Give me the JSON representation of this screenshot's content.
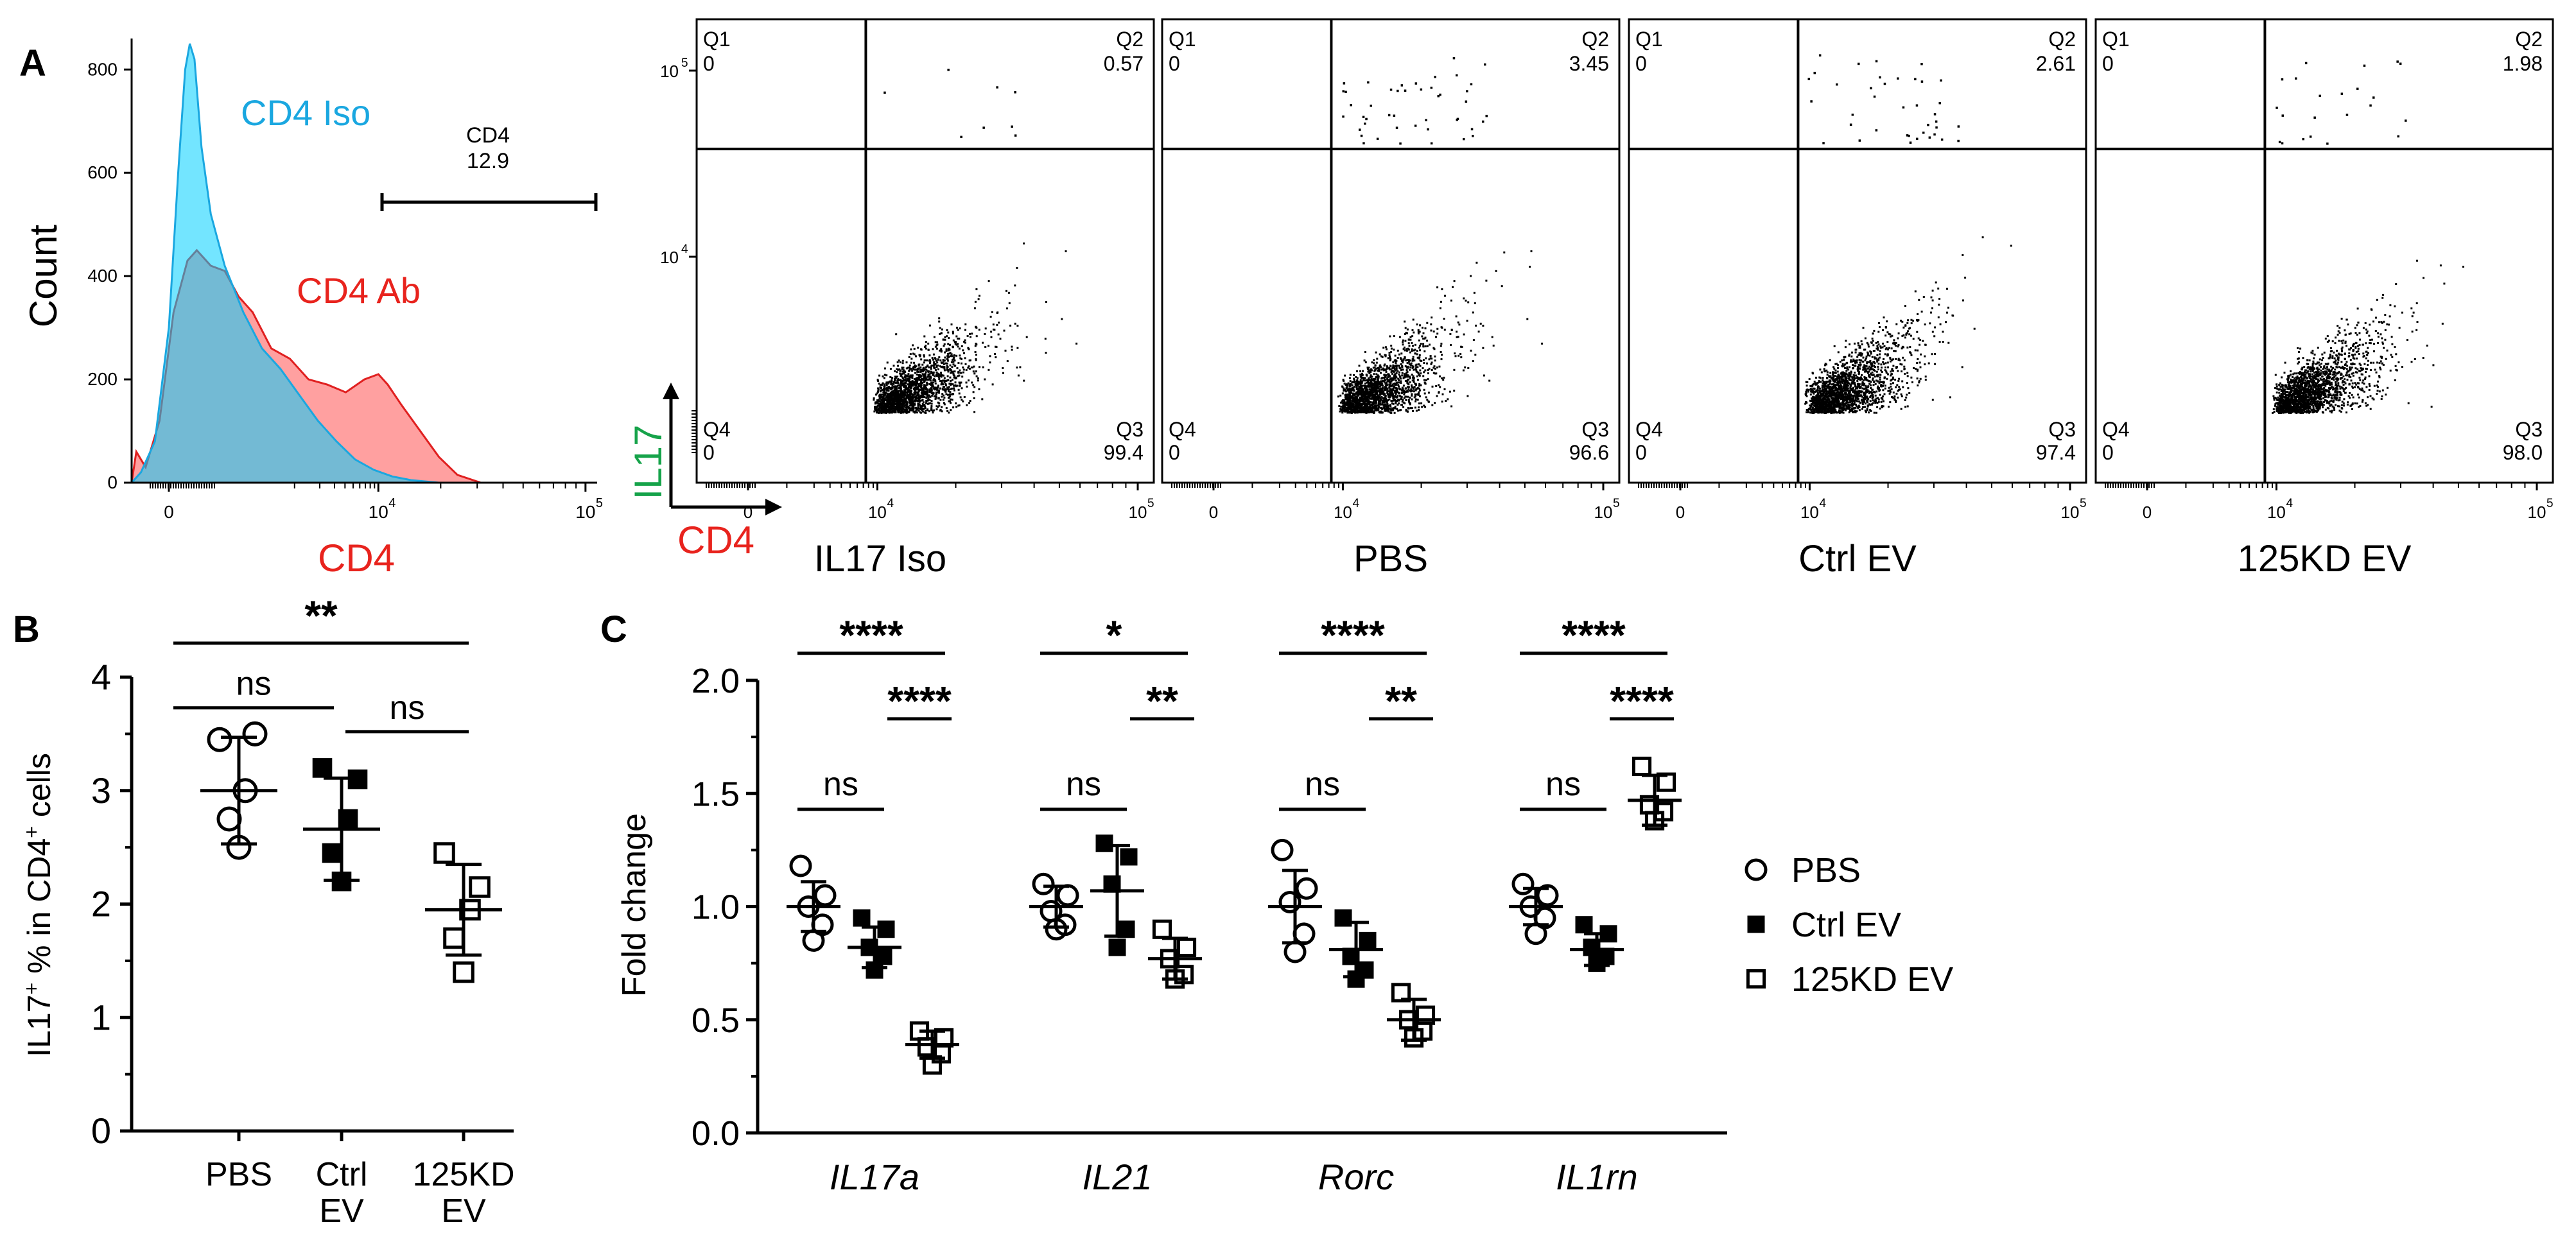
{
  "panel_labels": {
    "a": "A",
    "b": "B",
    "c": "C"
  },
  "colors": {
    "iso": "#00cfff",
    "iso_line": "#1aa7e0",
    "ab": "#ff8080",
    "ab_line": "#e02020",
    "overlap": "#6a9fb8",
    "red_text": "#e8231d",
    "green_text": "#16a34a",
    "cyan_text": "#1aa7e0",
    "black": "#000000"
  },
  "chart_data": [
    {
      "type": "area",
      "id": "histogram",
      "title": "",
      "xlabel": "CD4",
      "ylabel": "Count",
      "ylim": [
        0,
        860
      ],
      "y_ticks": [
        "0",
        "200",
        "400",
        "600",
        "800"
      ],
      "x_ticks": [
        "0",
        "10^4",
        "10^5"
      ],
      "series": [
        {
          "name": "CD4 Iso",
          "peak": 850
        },
        {
          "name": "CD4 Ab",
          "peak": 450
        }
      ],
      "gate": {
        "name": "CD4",
        "value": "12.9"
      },
      "tick_labels_display": {
        "x0": "0",
        "x4": "10",
        "x5": "10",
        "e4": "4",
        "e5": "5"
      }
    },
    {
      "type": "scatter",
      "id": "flow-plots",
      "xlabel": "CD4",
      "ylabel": "IL17",
      "axis_ticks": {
        "x0": "0",
        "x4": "10",
        "x5": "10",
        "e4": "4",
        "e5": "5",
        "y4": "10",
        "y5": "10"
      },
      "quadrant_names": [
        "Q1",
        "Q2",
        "Q3",
        "Q4"
      ],
      "plots": [
        {
          "label": "IL17 Iso",
          "Q1": "0",
          "Q2": "0.57",
          "Q3": "99.4",
          "Q4": "0",
          "q2_points": 8
        },
        {
          "label": "PBS",
          "Q1": "0",
          "Q2": "3.45",
          "Q3": "96.6",
          "Q4": "0",
          "q2_points": 45
        },
        {
          "label": "Ctrl EV",
          "Q1": "0",
          "Q2": "2.61",
          "Q3": "97.4",
          "Q4": "0",
          "q2_points": 38
        },
        {
          "label": "125KD EV",
          "Q1": "0",
          "Q2": "1.98",
          "Q3": "98.0",
          "Q4": "0",
          "q2_points": 22
        }
      ]
    },
    {
      "type": "scatter",
      "id": "il17-percent",
      "ylabel_main": "IL17",
      "ylabel_sup": "+",
      "ylabel_mid": " % in CD4",
      "ylabel_sup2": "+",
      "ylabel_end": " cells",
      "ylim": [
        0,
        4
      ],
      "y_ticks": [
        "0",
        "1",
        "2",
        "3",
        "4"
      ],
      "groups": [
        {
          "name": "PBS",
          "name_line2": "",
          "marker": "open-circle",
          "values": [
            3.45,
            3.5,
            3.0,
            2.75,
            2.5
          ],
          "mean": 3.0,
          "sd": 0.47
        },
        {
          "name": "Ctrl",
          "name_line2": "EV",
          "marker": "filled-square",
          "values": [
            3.2,
            3.1,
            2.75,
            2.45,
            2.2
          ],
          "mean": 2.66,
          "sd": 0.45
        },
        {
          "name": "125KD",
          "name_line2": "EV",
          "marker": "open-square",
          "values": [
            2.45,
            2.15,
            1.95,
            1.7,
            1.4
          ],
          "mean": 1.95,
          "sd": 0.4
        }
      ],
      "significance": [
        {
          "from": 0,
          "to": 1,
          "label": "ns",
          "y": 3.73
        },
        {
          "from": 1,
          "to": 2,
          "label": "ns",
          "y": 3.52
        },
        {
          "from": 0,
          "to": 2,
          "label": "**",
          "y": 4.3
        }
      ]
    },
    {
      "type": "scatter",
      "id": "fold-change",
      "ylabel": "Fold change",
      "ylim": [
        0,
        2.0
      ],
      "y_ticks": [
        "0.0",
        "0.5",
        "1.0",
        "1.5",
        "2.0"
      ],
      "legend": [
        {
          "name": "PBS",
          "marker": "open-circle"
        },
        {
          "name": "Ctrl EV",
          "marker": "filled-square"
        },
        {
          "name": "125KD EV",
          "marker": "open-square"
        }
      ],
      "genes": [
        {
          "name": "IL17a",
          "groups": [
            {
              "marker": "open-circle",
              "values": [
                1.18,
                1.05,
                1.0,
                0.92,
                0.85
              ],
              "mean": 1.0,
              "sd": 0.11
            },
            {
              "marker": "filled-square",
              "values": [
                0.95,
                0.9,
                0.82,
                0.78,
                0.72
              ],
              "mean": 0.82,
              "sd": 0.09
            },
            {
              "marker": "open-square",
              "values": [
                0.45,
                0.42,
                0.38,
                0.35,
                0.3
              ],
              "mean": 0.39,
              "sd": 0.06
            }
          ],
          "significance": [
            {
              "from": 0,
              "to": 1,
              "label": "ns",
              "y": 1.43
            },
            {
              "from": 1,
              "to": 2,
              "label": "****",
              "y": 1.83
            },
            {
              "from": 0,
              "to": 2,
              "label": "****",
              "y": 2.12
            }
          ]
        },
        {
          "name": "IL21",
          "groups": [
            {
              "marker": "open-circle",
              "values": [
                1.1,
                1.05,
                0.98,
                0.92,
                0.9
              ],
              "mean": 1.0,
              "sd": 0.09
            },
            {
              "marker": "filled-square",
              "values": [
                1.28,
                1.22,
                1.1,
                0.9,
                0.82
              ],
              "mean": 1.07,
              "sd": 0.2
            },
            {
              "marker": "open-square",
              "values": [
                0.9,
                0.82,
                0.77,
                0.7,
                0.68
              ],
              "mean": 0.77,
              "sd": 0.09
            }
          ],
          "significance": [
            {
              "from": 0,
              "to": 1,
              "label": "ns",
              "y": 1.43
            },
            {
              "from": 1,
              "to": 2,
              "label": "**",
              "y": 1.83
            },
            {
              "from": 0,
              "to": 2,
              "label": "*",
              "y": 2.12
            }
          ]
        },
        {
          "name": "Rorc",
          "groups": [
            {
              "marker": "open-circle",
              "values": [
                1.25,
                1.08,
                1.02,
                0.88,
                0.8
              ],
              "mean": 1.0,
              "sd": 0.16
            },
            {
              "marker": "filled-square",
              "values": [
                0.95,
                0.85,
                0.78,
                0.72,
                0.68
              ],
              "mean": 0.81,
              "sd": 0.12
            },
            {
              "marker": "open-square",
              "values": [
                0.62,
                0.52,
                0.5,
                0.45,
                0.42
              ],
              "mean": 0.5,
              "sd": 0.09
            }
          ],
          "significance": [
            {
              "from": 0,
              "to": 1,
              "label": "ns",
              "y": 1.43
            },
            {
              "from": 1,
              "to": 2,
              "label": "**",
              "y": 1.83
            },
            {
              "from": 0,
              "to": 2,
              "label": "****",
              "y": 2.12
            }
          ]
        },
        {
          "name": "IL1rn",
          "groups": [
            {
              "marker": "open-circle",
              "values": [
                1.1,
                1.05,
                1.0,
                0.95,
                0.88
              ],
              "mean": 1.0,
              "sd": 0.08
            },
            {
              "marker": "filled-square",
              "values": [
                0.92,
                0.88,
                0.82,
                0.78,
                0.75
              ],
              "mean": 0.81,
              "sd": 0.07
            },
            {
              "marker": "open-square",
              "values": [
                1.62,
                1.55,
                1.45,
                1.42,
                1.38
              ],
              "mean": 1.47,
              "sd": 0.11
            }
          ],
          "significance": [
            {
              "from": 0,
              "to": 1,
              "label": "ns",
              "y": 1.43
            },
            {
              "from": 1,
              "to": 2,
              "label": "****",
              "y": 1.83
            },
            {
              "from": 0,
              "to": 2,
              "label": "****",
              "y": 2.12
            }
          ]
        }
      ]
    }
  ]
}
